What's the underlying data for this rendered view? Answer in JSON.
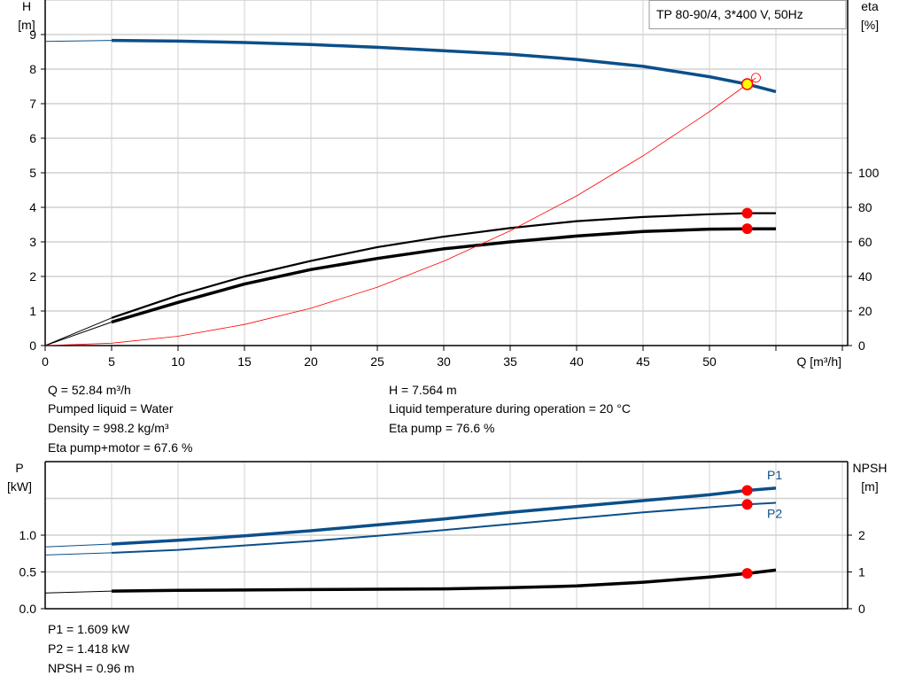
{
  "legend_box": "TP 80-90/4, 3*400 V, 50Hz",
  "colors": {
    "head": "#0b4f8a",
    "power": "#0b4f8a",
    "efficiency": "#000000",
    "system": "#ff0000",
    "operating_point": "#ff0000",
    "duty_point_fill": "#ffff00",
    "grid": "#d0d0d0"
  },
  "chart_data": [
    {
      "type": "line",
      "xlabel": "Q [m³/h]",
      "ylabel": "H\n[m]",
      "y2label": "eta\n[%]",
      "xlim": [
        0,
        60
      ],
      "ylim": [
        0,
        10
      ],
      "y2lim": [
        0,
        200
      ],
      "xticks": [
        "0",
        "5",
        "10",
        "15",
        "20",
        "25",
        "30",
        "35",
        "40",
        "45",
        "50"
      ],
      "yticks": [
        "0",
        "1",
        "2",
        "3",
        "4",
        "5",
        "6",
        "7",
        "8",
        "9"
      ],
      "y2ticks": [
        "0",
        "20",
        "40",
        "60",
        "80",
        "100"
      ],
      "grid": true,
      "series": [
        {
          "key": "H",
          "axis": "left",
          "x": [
            0,
            5,
            10,
            15,
            20,
            25,
            30,
            35,
            40,
            45,
            50,
            52.84,
            55
          ],
          "y": [
            8.8,
            8.83,
            8.81,
            8.77,
            8.71,
            8.63,
            8.53,
            8.43,
            8.28,
            8.08,
            7.78,
            7.564,
            7.35
          ]
        },
        {
          "key": "eta_pump",
          "axis": "right",
          "x": [
            0,
            5,
            10,
            15,
            20,
            25,
            30,
            35,
            40,
            45,
            50,
            52.84,
            55
          ],
          "y": [
            0,
            16,
            29,
            40,
            49,
            57,
            63,
            68,
            72,
            74.4,
            76,
            76.6,
            76.6
          ]
        },
        {
          "key": "eta_pump_motor",
          "axis": "right",
          "x": [
            0,
            5,
            10,
            15,
            20,
            25,
            30,
            35,
            40,
            45,
            50,
            52.84,
            55
          ],
          "y": [
            0,
            13.6,
            25,
            35.6,
            44,
            50.4,
            56,
            60,
            63.4,
            66,
            67.4,
            67.6,
            67.6
          ]
        },
        {
          "key": "system",
          "axis": "left",
          "x": [
            0,
            5,
            10,
            15,
            20,
            25,
            30,
            35,
            40,
            45,
            50,
            52.84,
            53.5
          ],
          "y": [
            0,
            0.07,
            0.27,
            0.61,
            1.08,
            1.69,
            2.44,
            3.32,
            4.33,
            5.49,
            6.77,
            7.564,
            7.75
          ]
        }
      ],
      "operating_points": [
        {
          "series": "H",
          "x": 52.84,
          "y": 7.564
        },
        {
          "series": "eta_pump",
          "x": 52.84,
          "y": 76.6
        },
        {
          "series": "eta_pump_motor",
          "x": 52.84,
          "y": 67.6
        }
      ]
    },
    {
      "type": "line",
      "ylabel": "P\n[kW]",
      "y2label": "NPSH\n[m]",
      "xlim": [
        0,
        60
      ],
      "ylim": [
        0,
        2
      ],
      "y2lim": [
        0,
        4
      ],
      "yticks": [
        "0.0",
        "0.5",
        "1.0"
      ],
      "y2ticks": [
        "0",
        "1",
        "2"
      ],
      "grid": true,
      "series": [
        {
          "key": "P1",
          "name": "P1",
          "axis": "left",
          "x": [
            0,
            5,
            10,
            15,
            20,
            25,
            30,
            35,
            40,
            45,
            50,
            52.84,
            55
          ],
          "y": [
            0.84,
            0.88,
            0.93,
            0.99,
            1.06,
            1.14,
            1.22,
            1.31,
            1.39,
            1.47,
            1.55,
            1.609,
            1.64
          ]
        },
        {
          "key": "P2",
          "name": "P2",
          "axis": "left",
          "x": [
            0,
            5,
            10,
            15,
            20,
            25,
            30,
            35,
            40,
            45,
            50,
            52.84,
            55
          ],
          "y": [
            0.73,
            0.76,
            0.8,
            0.86,
            0.92,
            0.99,
            1.07,
            1.15,
            1.23,
            1.31,
            1.38,
            1.418,
            1.44
          ]
        },
        {
          "key": "NPSH",
          "axis": "right",
          "x": [
            0,
            5,
            10,
            20,
            30,
            35,
            40,
            45,
            50,
            52.84,
            55
          ],
          "y": [
            0.43,
            0.48,
            0.5,
            0.52,
            0.54,
            0.57,
            0.62,
            0.72,
            0.86,
            0.96,
            1.05
          ]
        }
      ],
      "operating_points": [
        {
          "series": "P1",
          "x": 52.84,
          "y": 1.609
        },
        {
          "series": "P2",
          "x": 52.84,
          "y": 1.418
        },
        {
          "series": "NPSH",
          "x": 52.84,
          "y": 0.96
        }
      ]
    }
  ],
  "results_top": {
    "left": [
      "Q = 52.84 m³/h",
      "Pumped liquid = Water",
      "Density = 998.2 kg/m³",
      "Eta pump+motor = 67.6 %"
    ],
    "right": [
      "H = 7.564 m",
      "Liquid temperature during operation = 20 °C",
      "Eta pump = 76.6 %"
    ]
  },
  "results_bottom": [
    "P1 = 1.609 kW",
    "P2 = 1.418 kW",
    "NPSH = 0.96 m"
  ]
}
